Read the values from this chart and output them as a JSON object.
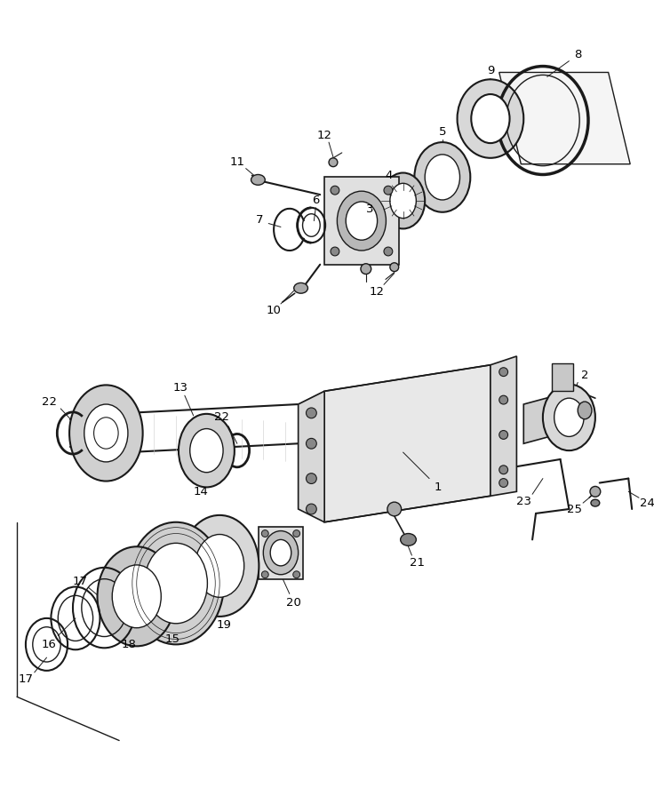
{
  "bg_color": "#ffffff",
  "line_color": "#1a1a1a",
  "fig_width": 7.36,
  "fig_height": 9.14,
  "dpi": 100
}
